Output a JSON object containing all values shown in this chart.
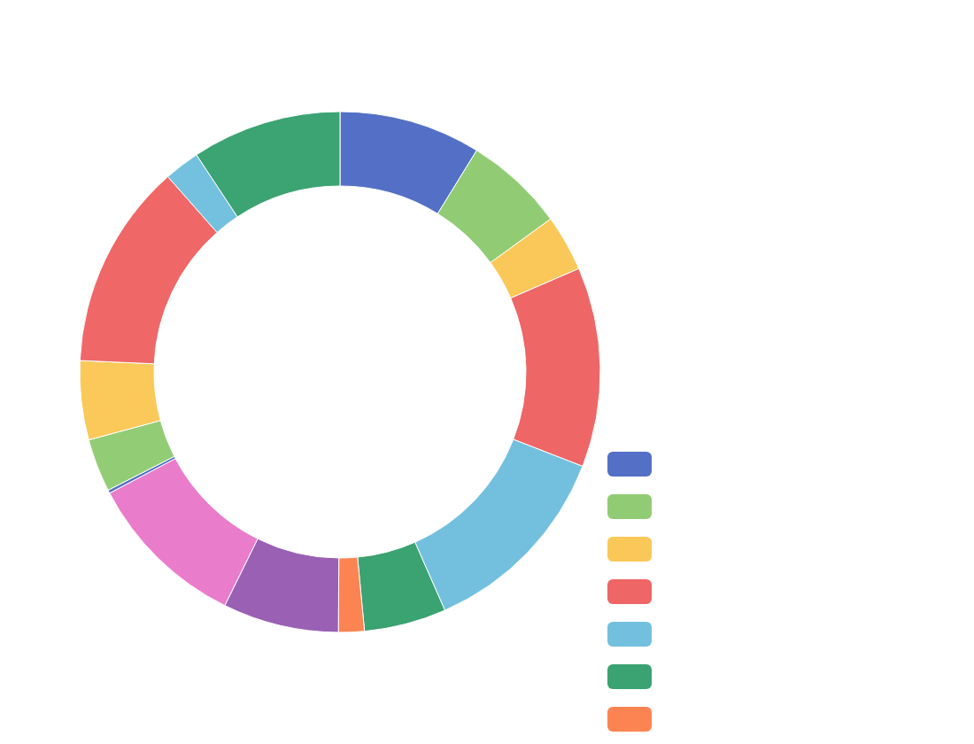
{
  "chart_data": {
    "type": "donut",
    "categories": [
      null,
      null,
      null,
      null,
      null,
      null,
      null,
      null,
      null,
      null,
      null,
      null,
      null,
      null,
      null
    ],
    "values": [
      8.8,
      6.2,
      3.5,
      12.4,
      12.5,
      5.1,
      1.6,
      7.2,
      10.0,
      0.2,
      3.3,
      4.9,
      12.8,
      2.2,
      9.3
    ],
    "colors": [
      "#5470c6",
      "#91cc75",
      "#fac858",
      "#ee6666",
      "#73c0de",
      "#3ba272",
      "#fc8452",
      "#9a60b4",
      "#ea7ccc",
      "#5571c7",
      "#92cd76",
      "#fbc959",
      "#ef6767",
      "#74c1df",
      "#3ca373"
    ]
  }
}
